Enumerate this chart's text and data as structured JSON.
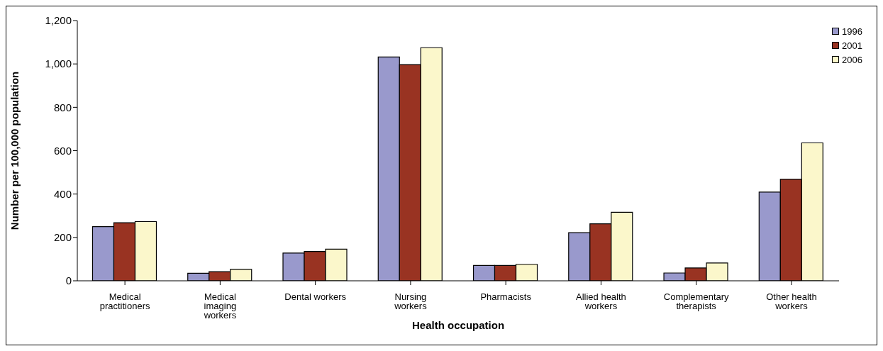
{
  "chart_data": {
    "type": "bar",
    "xlabel": "Health occupation",
    "ylabel": "Number per 100,000 population",
    "categories": [
      "Medical practitioners",
      "Medical imaging workers",
      "Dental workers",
      "Nursing workers",
      "Pharmacists",
      "Allied health workers",
      "Complementary therapists",
      "Other health workers"
    ],
    "series": [
      {
        "name": "1996",
        "color": "#9999cc",
        "values": [
          250,
          35,
          128,
          1032,
          71,
          222,
          36,
          409
        ]
      },
      {
        "name": "2001",
        "color": "#993322",
        "values": [
          268,
          42,
          135,
          997,
          71,
          263,
          59,
          468
        ]
      },
      {
        "name": "2006",
        "color": "#fbf7cb",
        "values": [
          273,
          53,
          146,
          1075,
          76,
          316,
          82,
          636
        ]
      }
    ],
    "ylim": [
      0,
      1200
    ],
    "yticks": [
      {
        "value": 0,
        "label": "0"
      },
      {
        "value": 200,
        "label": "200"
      },
      {
        "value": 400,
        "label": "400"
      },
      {
        "value": 600,
        "label": "600"
      },
      {
        "value": 800,
        "label": "800"
      },
      {
        "value": 1000,
        "label": "1,000"
      },
      {
        "value": 1200,
        "label": "1,200"
      }
    ],
    "grid": false,
    "legend": "top right"
  }
}
